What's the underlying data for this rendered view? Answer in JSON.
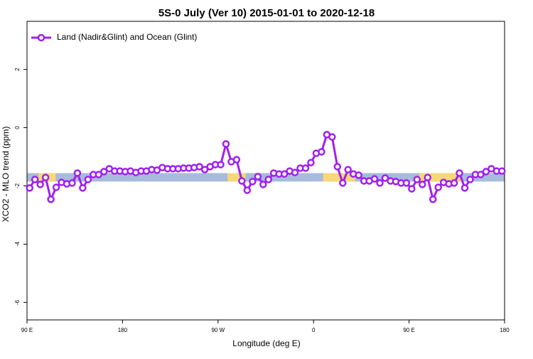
{
  "chart_data": {
    "type": "line",
    "title": "5S-0 July (Ver 10)   2015-01-01 to 2020-12-18",
    "x_label": "Longitude (deg E)",
    "y_label": "XCO2 - MLO trend (ppm)",
    "legend_position": "top-left",
    "xlim": [
      90,
      540
    ],
    "ylim": [
      -6.6,
      3.65
    ],
    "xticks": [
      {
        "value": 90,
        "label": "90 E"
      },
      180,
      {
        "value": 270,
        "label": "90 W"
      },
      {
        "value": 360,
        "label": "0"
      },
      {
        "value": 450,
        "label": "90 E"
      },
      {
        "value": 540,
        "label": "180"
      }
    ],
    "yticks": [
      2,
      0,
      -2,
      -4,
      -6
    ],
    "mask": {
      "ocean_color": "#a7bcdb",
      "land_color": "#f7d878",
      "yrange": [
        -1.85,
        -1.56
      ],
      "land": [
        [
          101,
          117
        ],
        [
          279,
          296
        ],
        [
          369,
          399
        ],
        [
          460,
          500
        ]
      ]
    },
    "x": [
      92.5,
      97.5,
      102.5,
      107.5,
      112.5,
      117.5,
      122.5,
      127.5,
      132.5,
      137.5,
      142.5,
      147.5,
      152.5,
      157.5,
      162.5,
      167.5,
      172.5,
      177.5,
      182.5,
      187.5,
      192.5,
      197.5,
      202.5,
      207.5,
      212.5,
      217.5,
      222.5,
      227.5,
      232.5,
      237.5,
      242.5,
      247.5,
      252.5,
      257.5,
      262.5,
      267.5,
      272.5,
      277.5,
      282.5,
      287.5,
      292.5,
      297.5,
      302.5,
      307.5,
      312.5,
      317.5,
      322.5,
      327.5,
      332.5,
      337.5,
      342.5,
      347.5,
      352.5,
      357.5,
      362.5,
      367.5,
      372.5,
      377.5,
      382.5,
      387.5,
      392.5,
      397.5,
      402.5,
      407.5,
      412.5,
      417.5,
      422.5,
      427.5,
      432.5,
      437.5,
      442.5,
      447.5,
      452.5,
      457.5,
      462.5,
      467.5,
      472.5,
      477.5,
      482.5,
      487.5,
      492.5,
      497.5,
      502.5,
      507.5,
      512.5,
      517.5,
      522.5,
      527.5,
      532.5,
      537.5
    ],
    "series": [
      {
        "name": "Land (Nadir&Glint) and Ocean (Glint)",
        "color": "#a020f0",
        "values": [
          -2.07,
          -1.78,
          -1.95,
          -1.71,
          -2.46,
          -2.05,
          -1.88,
          -1.93,
          -1.9,
          -1.56,
          -2.07,
          -1.78,
          -1.61,
          -1.61,
          -1.51,
          -1.41,
          -1.49,
          -1.49,
          -1.51,
          -1.49,
          -1.54,
          -1.49,
          -1.49,
          -1.44,
          -1.46,
          -1.37,
          -1.41,
          -1.41,
          -1.41,
          -1.39,
          -1.39,
          -1.37,
          -1.34,
          -1.44,
          -1.34,
          -1.27,
          -1.27,
          -0.56,
          -1.17,
          -1.1,
          -1.83,
          -2.15,
          -1.85,
          -1.68,
          -1.95,
          -1.78,
          -1.56,
          -1.59,
          -1.59,
          -1.49,
          -1.54,
          -1.39,
          -1.39,
          -1.2,
          -0.88,
          -0.83,
          -0.24,
          -0.32,
          -1.34,
          -1.9,
          -1.44,
          -1.59,
          -1.63,
          -1.83,
          -1.83,
          -1.76,
          -1.9,
          -1.73,
          -1.83,
          -1.85,
          -1.9,
          -1.9,
          -2.1,
          -1.78,
          -1.95,
          -1.71,
          -2.46,
          -2.05,
          -1.88,
          -1.93,
          -1.9,
          -1.56,
          -2.07,
          -1.78,
          -1.61,
          -1.61,
          -1.51,
          -1.41,
          -1.49,
          -1.49
        ]
      }
    ]
  }
}
